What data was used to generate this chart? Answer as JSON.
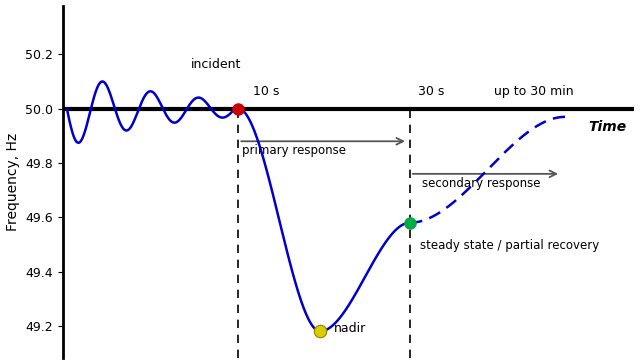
{
  "ylabel": "Frequency, Hz",
  "yticks": [
    49.2,
    49.4,
    49.6,
    49.8,
    50.0,
    50.2
  ],
  "ylim": [
    49.08,
    50.38
  ],
  "xlim": [
    -1.5,
    12.5
  ],
  "nominal_freq": 50.0,
  "incident_x": 2.8,
  "incident_y": 50.0,
  "nadir_x": 4.8,
  "nadir_y": 49.18,
  "steady_x": 7.0,
  "steady_y": 49.58,
  "x_10s": 2.8,
  "x_30s": 7.0,
  "x_secondary_end": 10.8,
  "line_color": "#0000CC",
  "incident_color": "#CC0000",
  "nadir_color": "#DDCC00",
  "steady_color": "#00AA44",
  "arrow_color": "#555555",
  "label_incident": "incident",
  "label_nadir": "nadir",
  "label_steady": "steady state / partial recovery",
  "label_primary": "primary response",
  "label_secondary": "secondary response",
  "label_10s": "10 s",
  "label_30s": "30 s",
  "label_upto": "up to 30 min",
  "label_time": "Time",
  "figsize": [
    6.4,
    3.64
  ],
  "dpi": 100
}
